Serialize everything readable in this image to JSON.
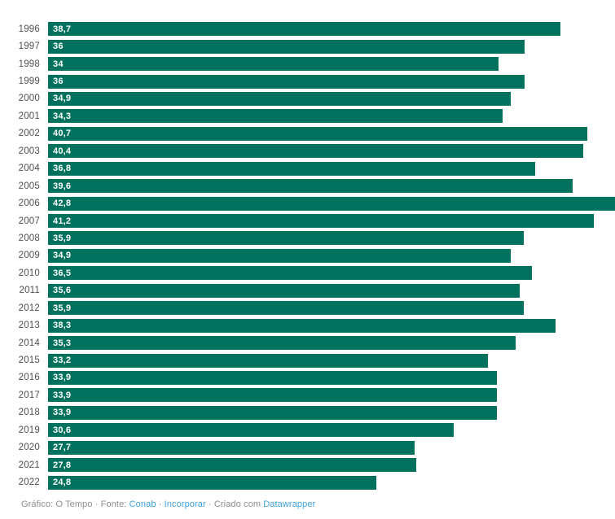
{
  "chart_data": {
    "type": "bar",
    "orientation": "horizontal",
    "title": "",
    "xlabel": "",
    "ylabel": "",
    "xlim": [
      0,
      42.8
    ],
    "grid": false,
    "legend": false,
    "bar_color": "#00715c",
    "categories": [
      "1996",
      "1997",
      "1998",
      "1999",
      "2000",
      "2001",
      "2002",
      "2003",
      "2004",
      "2005",
      "2006",
      "2007",
      "2008",
      "2009",
      "2010",
      "2011",
      "2012",
      "2013",
      "2014",
      "2015",
      "2016",
      "2017",
      "2018",
      "2019",
      "2020",
      "2021",
      "2022"
    ],
    "values": [
      38.7,
      36,
      34,
      36,
      34.9,
      34.3,
      40.7,
      40.4,
      36.8,
      39.6,
      42.8,
      41.2,
      35.9,
      34.9,
      36.5,
      35.6,
      35.9,
      38.3,
      35.3,
      33.2,
      33.9,
      33.9,
      33.9,
      30.6,
      27.7,
      27.8,
      24.8
    ],
    "value_labels": [
      "38,7",
      "36",
      "34",
      "36",
      "34,9",
      "34,3",
      "40,7",
      "40,4",
      "36,8",
      "39,6",
      "42,8",
      "41,2",
      "35,9",
      "34,9",
      "36,5",
      "35,6",
      "35,9",
      "38,3",
      "35,3",
      "33,2",
      "33,9",
      "33,9",
      "33,9",
      "30,6",
      "27,7",
      "27,8",
      "24,8"
    ]
  },
  "footer": {
    "segments": [
      {
        "name": "credit-text",
        "text": "Gráfico: O Tempo · Fonte: ",
        "link": false
      },
      {
        "name": "source-link-conab",
        "text": "Conab",
        "link": true
      },
      {
        "name": "separator-text",
        "text": " · ",
        "link": false
      },
      {
        "name": "embed-link",
        "text": "Incorporar",
        "link": true
      },
      {
        "name": "created-with-text",
        "text": " · Criado com ",
        "link": false
      },
      {
        "name": "datawrapper-link",
        "text": "Datawrapper",
        "link": true
      }
    ]
  },
  "colors": {
    "bar": "#00715c",
    "year_label": "#4f4f4f",
    "value_label": "#ffffff",
    "footer_text": "#8d8d8d",
    "footer_link": "#3ea0dc",
    "background": "#ffffff"
  }
}
